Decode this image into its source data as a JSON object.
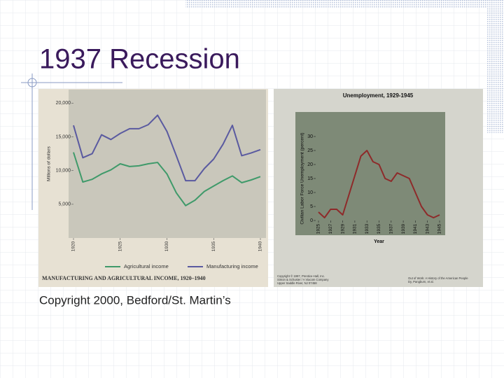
{
  "slide": {
    "title": "1937 Recession",
    "caption": "Copyright 2000, Bedford/St. Martin’s"
  },
  "chart_data": [
    {
      "type": "line",
      "title": "MANUFACTURING AND AGRICULTURAL INCOME, 1920–1940",
      "ylabel": "Millions of dollars",
      "x": [
        1920,
        1921,
        1922,
        1923,
        1924,
        1925,
        1926,
        1927,
        1928,
        1929,
        1930,
        1931,
        1932,
        1933,
        1934,
        1935,
        1936,
        1937,
        1938,
        1939,
        1940
      ],
      "series": [
        {
          "name": "Agricultural income",
          "color": "#3f9a6a",
          "values": [
            12700,
            8300,
            8700,
            9500,
            10100,
            11000,
            10600,
            10700,
            11000,
            11200,
            9500,
            6700,
            4800,
            5600,
            6900,
            7700,
            8500,
            9200,
            8200,
            8600,
            9100
          ]
        },
        {
          "name": "Manufacturing income",
          "color": "#5a5aa0",
          "values": [
            16700,
            11900,
            12500,
            15300,
            14600,
            15500,
            16200,
            16200,
            16800,
            18200,
            15800,
            12200,
            8500,
            8500,
            10300,
            11700,
            13900,
            16700,
            12200,
            12600,
            13100
          ]
        }
      ],
      "xlim": [
        1920,
        1940
      ],
      "xticks": [
        1920,
        1925,
        1930,
        1935,
        1940
      ],
      "ylim": [
        0,
        22000
      ],
      "yticks": [
        {
          "value": 5000,
          "label": "5,000"
        },
        {
          "value": 10000,
          "label": "10,000"
        },
        {
          "value": 15000,
          "label": "15,000"
        },
        {
          "value": 20000,
          "label": "20,000"
        }
      ],
      "legend": "bottom"
    },
    {
      "type": "line",
      "title": "Unemployment, 1929-1945",
      "xlabel": "Year",
      "ylabel": "Civilian Labor Force Unemployment (percent)",
      "x": [
        1925,
        1926,
        1927,
        1928,
        1929,
        1930,
        1931,
        1932,
        1933,
        1934,
        1935,
        1936,
        1937,
        1938,
        1939,
        1940,
        1941,
        1942,
        1943,
        1944,
        1945
      ],
      "series": [
        {
          "name": "Unemployment",
          "color": "#8e2a2a",
          "values": [
            3,
            1,
            4,
            4,
            2,
            9,
            16,
            23,
            25,
            21,
            20,
            15,
            14,
            17,
            16,
            15,
            10,
            5,
            2,
            1,
            2
          ]
        }
      ],
      "xlim": [
        1925,
        1945
      ],
      "xticks": [
        1925,
        1927,
        1929,
        1931,
        1933,
        1935,
        1937,
        1939,
        1941,
        1943,
        1945
      ],
      "ylim": [
        0,
        30
      ],
      "yticks": [
        0,
        5,
        10,
        15,
        20,
        25,
        30
      ],
      "credits": [
        "Copyright © 1997, Prentice-Hall, Inc.",
        "Simon & Schuster / A Viacom Company",
        "Upper Saddle River, NJ 07458",
        "Out of Work: A History of the American People",
        "Dy, Pangburn, et al."
      ]
    }
  ]
}
